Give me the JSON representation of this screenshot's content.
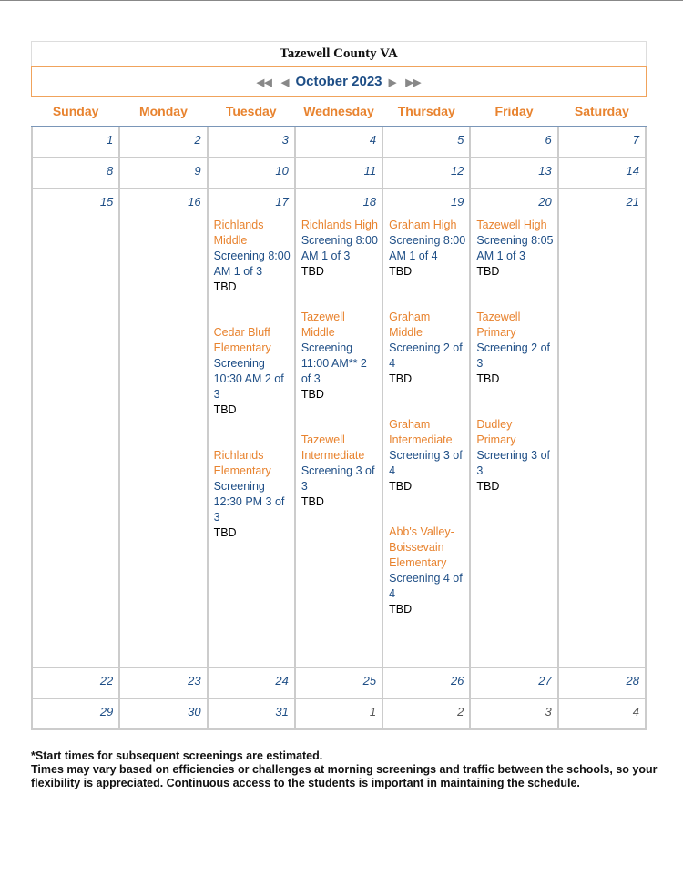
{
  "title": "Tazewell County VA",
  "month": "October 2023",
  "days": [
    "Sunday",
    "Monday",
    "Tuesday",
    "Wednesday",
    "Thursday",
    "Friday",
    "Saturday"
  ],
  "weeks": [
    [
      {
        "n": "1"
      },
      {
        "n": "2"
      },
      {
        "n": "3"
      },
      {
        "n": "4"
      },
      {
        "n": "5"
      },
      {
        "n": "6"
      },
      {
        "n": "7"
      }
    ],
    [
      {
        "n": "8"
      },
      {
        "n": "9"
      },
      {
        "n": "10"
      },
      {
        "n": "11"
      },
      {
        "n": "12"
      },
      {
        "n": "13"
      },
      {
        "n": "14"
      }
    ],
    [
      {
        "n": "15"
      },
      {
        "n": "16"
      },
      {
        "n": "17",
        "events": [
          {
            "t": "Richlands Middle",
            "d": "Screening 8:00 AM 1 of 3",
            "l": "TBD"
          },
          {
            "t": "Cedar Bluff Elementary",
            "d": "Screening 10:30 AM 2 of 3",
            "l": "TBD"
          },
          {
            "t": "Richlands Elementary",
            "d": "Screening 12:30 PM 3 of 3",
            "l": "TBD"
          }
        ]
      },
      {
        "n": "18",
        "events": [
          {
            "t": "Richlands High",
            "d": "Screening 8:00 AM 1 of 3",
            "l": "TBD"
          },
          {
            "t": "Tazewell Middle",
            "d": "Screening 11:00 AM** 2 of 3",
            "l": "TBD"
          },
          {
            "t": "Tazewell Intermediate",
            "d": "Screening 3 of 3",
            "l": "TBD"
          }
        ]
      },
      {
        "n": "19",
        "events": [
          {
            "t": "Graham High",
            "d": "Screening 8:00 AM 1 of 4",
            "l": "TBD"
          },
          {
            "t": "Graham Middle",
            "d": "Screening 2 of 4",
            "l": "TBD"
          },
          {
            "t": "Graham Intermediate",
            "d": "Screening 3 of 4",
            "l": "TBD"
          },
          {
            "t": "Abb's Valley-Boissevain Elementary",
            "d": "Screening 4 of 4",
            "l": "TBD"
          }
        ]
      },
      {
        "n": "20",
        "events": [
          {
            "t": "Tazewell High",
            "d": "Screening 8:05 AM 1 of 3",
            "l": "TBD"
          },
          {
            "t": "Tazewell Primary",
            "d": "Screening 2 of 3",
            "l": "TBD"
          },
          {
            "t": "Dudley Primary",
            "d": "Screening 3 of 3",
            "l": "TBD"
          }
        ]
      },
      {
        "n": "21"
      }
    ],
    [
      {
        "n": "22"
      },
      {
        "n": "23"
      },
      {
        "n": "24"
      },
      {
        "n": "25"
      },
      {
        "n": "26"
      },
      {
        "n": "27"
      },
      {
        "n": "28"
      }
    ],
    [
      {
        "n": "29"
      },
      {
        "n": "30"
      },
      {
        "n": "31"
      },
      {
        "n": "1",
        "other": true
      },
      {
        "n": "2",
        "other": true
      },
      {
        "n": "3",
        "other": true
      },
      {
        "n": "4",
        "other": true
      }
    ]
  ],
  "note": [
    "*Start times for subsequent screenings are estimated.",
    "Times may vary based on efficiencies or challenges at morning screenings and traffic between the schools, so your flexibility is appreciated. Continuous access to the students is important in maintaining the schedule."
  ]
}
